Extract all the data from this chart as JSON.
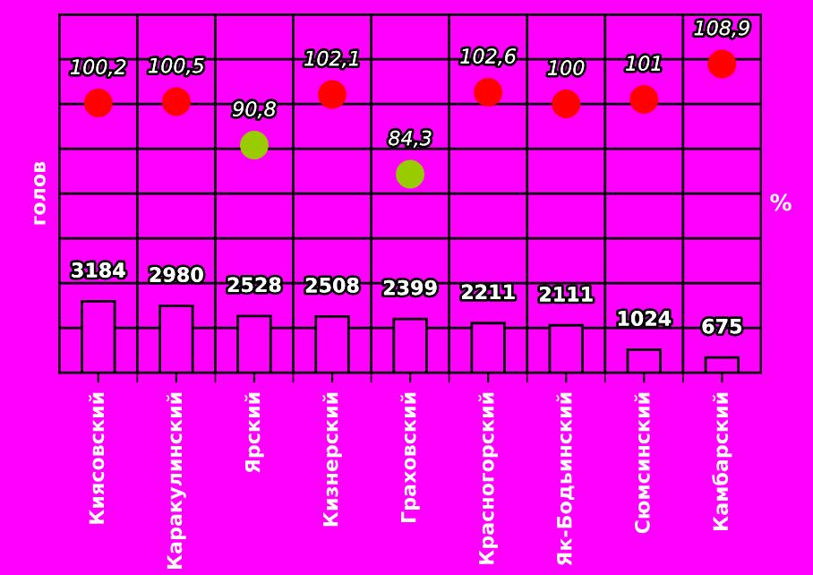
{
  "chart_data": {
    "type": "bar",
    "ylabel": "голов",
    "y2label": "%",
    "categories": [
      "Киясовский",
      "Каракулинский",
      "Ярский",
      "Кизнерский",
      "Граховский",
      "Красногорский",
      "Як-Бодьинский",
      "Сюмсинский",
      "Камбарский"
    ],
    "series": [
      {
        "color": "#ff00ff",
        "values": [
          3184,
          2980,
          2528,
          2508,
          2399,
          2211,
          2111,
          1024,
          675
        ]
      },
      {
        "type": "scatter",
        "axis": "y2",
        "colors": [
          "#ff0000",
          "#ff0000",
          "#99cc00",
          "#ff0000",
          "#99cc00",
          "#ff0000",
          "#ff0000",
          "#ff0000",
          "#ff0000"
        ],
        "values": [
          100.2,
          100.5,
          90.8,
          102.1,
          84.3,
          102.6,
          100,
          101,
          108.9
        ],
        "value_labels": [
          "100,2",
          "100,5",
          "90,8",
          "102,1",
          "84,3",
          "102,6",
          "100",
          "101",
          "108,9"
        ]
      }
    ],
    "data_labels": true,
    "ylim": [
      0,
      16000
    ],
    "y2lim": [
      40,
      120
    ],
    "tick_labels": "x",
    "grid": true,
    "marker": "circle",
    "legend": false
  }
}
